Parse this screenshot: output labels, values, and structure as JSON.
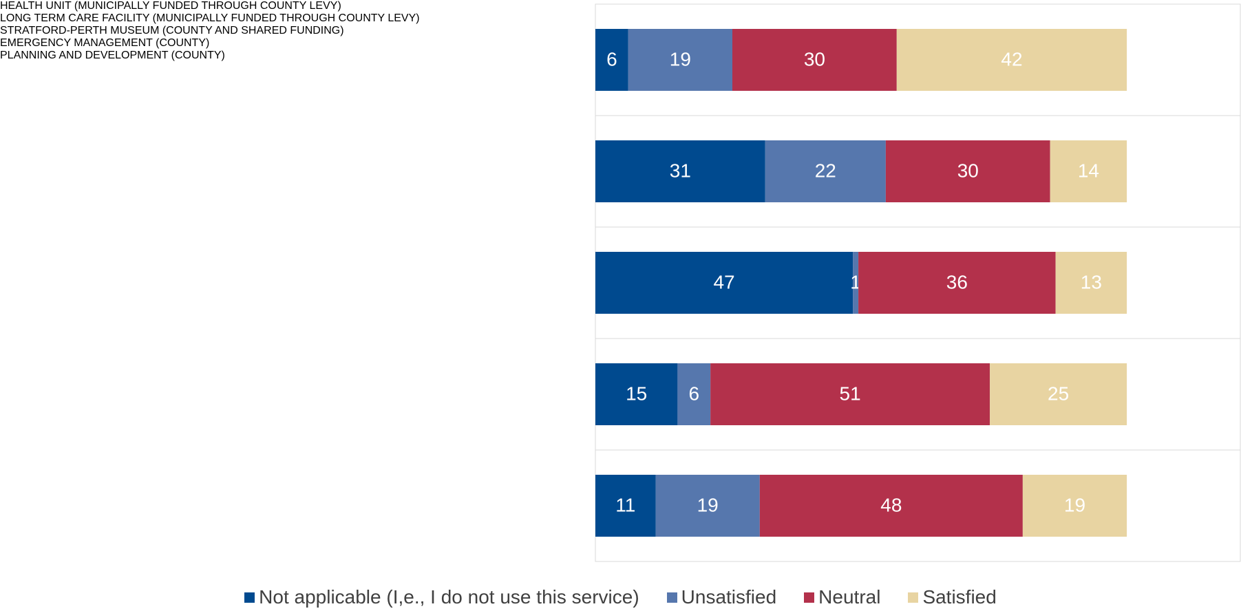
{
  "chart_data": {
    "type": "stacked_bar_horizontal",
    "categories": [
      "HEALTH UNIT (MUNICIPALLY FUNDED THROUGH COUNTY LEVY)",
      "LONG TERM CARE FACILITY (MUNICIPALLY FUNDED THROUGH COUNTY LEVY)",
      "STRATFORD-PERTH MUSEUM (COUNTY AND SHARED FUNDING)",
      "EMERGENCY MANAGEMENT (COUNTY)",
      "PLANNING AND DEVELOPMENT (COUNTY)"
    ],
    "series": [
      {
        "name": "Not applicable (I,e., I do not use this service)",
        "color": "#004a8f",
        "values": [
          6,
          31,
          47,
          15,
          11
        ]
      },
      {
        "name": "Unsatisfied",
        "color": "#5677ad",
        "values": [
          19,
          22,
          1,
          6,
          19
        ]
      },
      {
        "name": "Neutral",
        "color": "#b3314b",
        "values": [
          30,
          30,
          36,
          51,
          48
        ]
      },
      {
        "name": "Satisfied",
        "color": "#e8d4a2",
        "values": [
          42,
          14,
          13,
          25,
          19
        ]
      }
    ],
    "legend": "bottom"
  }
}
